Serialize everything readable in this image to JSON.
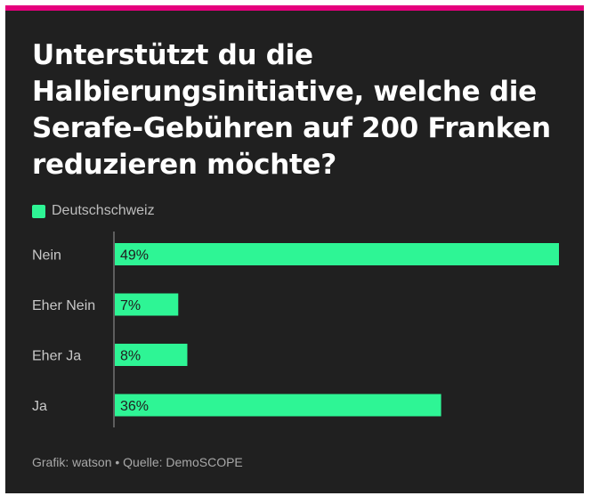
{
  "title": "Unterstützt du die Halbierungsinitiative, welche die Serafe-Gebühren auf 200 Franken reduzieren möchte?",
  "footer": "Grafik: watson • Quelle: DemoSCOPE",
  "colors": {
    "accent_bar": "#e5007d",
    "background": "#202020",
    "series": "#2ef595"
  },
  "chart_data": {
    "type": "bar",
    "orientation": "horizontal",
    "categories": [
      "Nein",
      "Eher Nein",
      "Eher Ja",
      "Ja"
    ],
    "series": [
      {
        "name": "Deutschschweiz",
        "values": [
          49,
          7,
          8,
          36
        ]
      }
    ],
    "data_labels": [
      "49%",
      "7%",
      "8%",
      "36%"
    ],
    "xlim": [
      0,
      49
    ],
    "legend_position": "top-left",
    "grid": false
  }
}
